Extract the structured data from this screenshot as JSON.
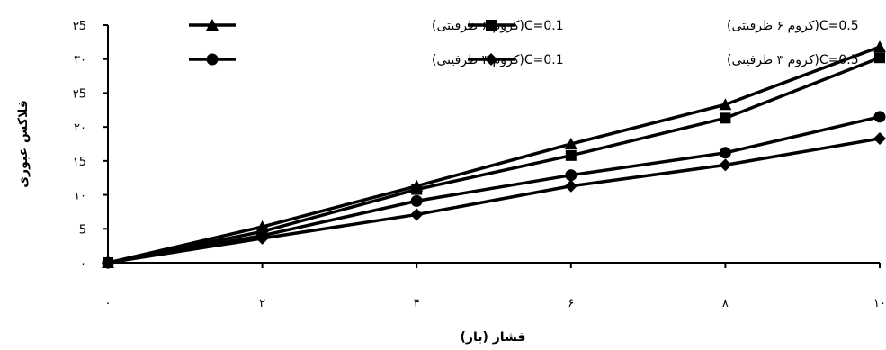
{
  "chart_data": {
    "type": "line",
    "title": "",
    "xlabel": "فشار (بار)",
    "ylabel": "فلاکس عبوری",
    "xlim": [
      0,
      10
    ],
    "ylim": [
      0,
      35
    ],
    "x_ticks": [
      0,
      2,
      4,
      6,
      8,
      10
    ],
    "x_tick_labels": [
      "۰",
      "۲",
      "۴",
      "۶",
      "۸",
      "۱۰"
    ],
    "y_ticks": [
      0,
      5,
      10,
      15,
      20,
      25,
      30,
      35
    ],
    "y_tick_labels": [
      "۰",
      "5",
      "۱۰",
      "۱5",
      "۲۰",
      "۲5",
      "۳۰",
      "۳5"
    ],
    "grid": false,
    "legend_position": "top",
    "x": [
      0,
      2,
      4,
      6,
      8,
      10
    ],
    "series": [
      {
        "name": "C=0.1(کروم ۶ ظرفیتی)",
        "marker": "triangle",
        "values": [
          0,
          5.3,
          11.3,
          17.5,
          23.3,
          31.8
        ]
      },
      {
        "name": "C=0.5(کروم ۶ ظرفیتی)",
        "marker": "square",
        "values": [
          0,
          4.6,
          10.8,
          15.8,
          21.3,
          30.2
        ]
      },
      {
        "name": "C=0.1(کروم ۳ ظرفیتی)",
        "marker": "circle",
        "values": [
          0,
          4.0,
          9.1,
          12.9,
          16.2,
          21.5
        ]
      },
      {
        "name": "C=0.5(کروم ۳ ظرفیتی)",
        "marker": "diamond",
        "values": [
          0,
          3.6,
          7.1,
          11.3,
          14.4,
          18.3
        ]
      }
    ]
  }
}
